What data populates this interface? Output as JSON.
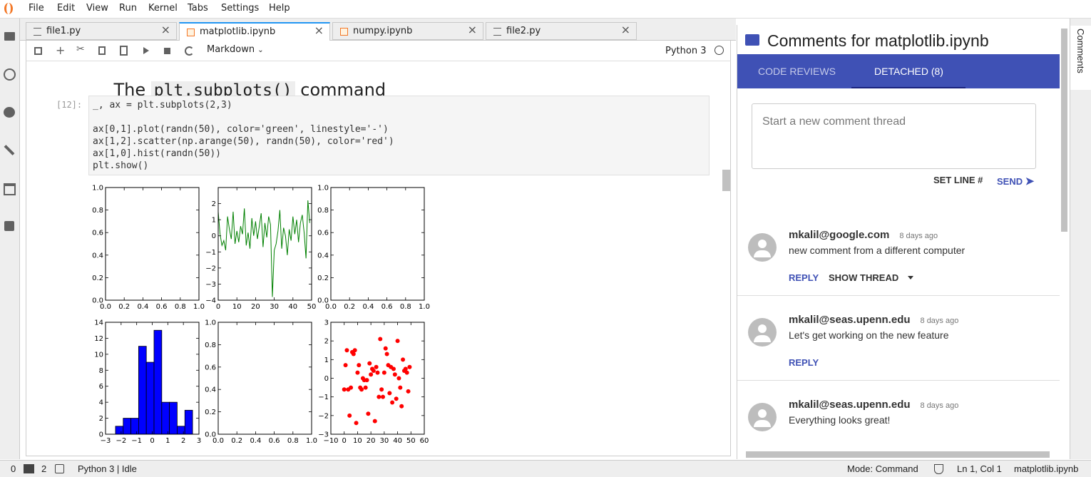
{
  "menu": [
    "File",
    "Edit",
    "View",
    "Run",
    "Kernel",
    "Tabs",
    "Settings",
    "Help"
  ],
  "tabs": [
    {
      "label": "file1.py",
      "kind": "text"
    },
    {
      "label": "matplotlib.ipynb",
      "kind": "notebook",
      "active": true
    },
    {
      "label": "numpy.ipynb",
      "kind": "notebook"
    },
    {
      "label": "file2.py",
      "kind": "text"
    }
  ],
  "toolbar": {
    "cell_type": "Markdown",
    "kernel": "Python 3"
  },
  "notebook": {
    "heading_prefix": "The ",
    "heading_code": "plt.subplots()",
    "heading_suffix": " command",
    "prompt": "[12]:",
    "code": [
      "_, ax = plt.subplots(2,3)",
      "ax[0,1].plot(randn(50), color='green', linestyle='-')",
      "ax[1,2].scatter(np.arange(50), randn(50), color='red')",
      "ax[1,0].hist(randn(50))",
      "plt.show()"
    ]
  },
  "chart_data": [
    {
      "type": "empty",
      "xlim": [
        0,
        1
      ],
      "ylim": [
        0,
        1
      ],
      "xticks": [
        {
          "value": 0,
          "label": "0.0"
        },
        0.2,
        0.4,
        0.6,
        0.8,
        {
          "value": 1,
          "label": "1.0"
        }
      ],
      "yticks": [
        {
          "value": 0,
          "label": "0.0"
        },
        0.2,
        0.4,
        0.6,
        0.8,
        {
          "value": 1,
          "label": "1.0"
        }
      ]
    },
    {
      "type": "line",
      "color": "#008000",
      "xlim": [
        0,
        50
      ],
      "ylim": [
        -4,
        3
      ],
      "xticks": [
        0,
        10,
        20,
        30,
        40,
        50
      ],
      "yticks": [
        {
          "value": -4,
          "label": "−4"
        },
        {
          "value": -3,
          "label": "−3"
        },
        {
          "value": -2,
          "label": "−2"
        },
        {
          "value": -1,
          "label": "−1"
        },
        0,
        1,
        2
      ],
      "x": [
        0,
        1,
        2,
        3,
        4,
        5,
        6,
        7,
        8,
        9,
        10,
        11,
        12,
        13,
        14,
        15,
        16,
        17,
        18,
        19,
        20,
        21,
        22,
        23,
        24,
        25,
        26,
        27,
        28,
        29,
        30,
        31,
        32,
        33,
        34,
        35,
        36,
        37,
        38,
        39,
        40,
        41,
        42,
        43,
        44,
        45,
        46,
        47,
        48,
        49
      ],
      "values": [
        1.5,
        0.1,
        -0.6,
        -0.3,
        -0.9,
        1.2,
        0.4,
        -0.2,
        1.5,
        -0.5,
        0.3,
        -0.4,
        0.6,
        0.1,
        1.7,
        -0.6,
        0.2,
        -0.8,
        1.1,
        0.0,
        0.9,
        -0.2,
        0.6,
        1.4,
        -0.7,
        0.8,
        -0.1,
        1.2,
        0.7,
        -3.8,
        -0.9,
        -0.5,
        0.3,
        1.6,
        -0.8,
        0.5,
        0.0,
        -1.2,
        0.4,
        -0.3,
        1.2,
        0.1,
        1.0,
        -0.4,
        0.8,
        1.3,
        0.2,
        -1.4,
        2.2,
        0.8
      ]
    },
    {
      "type": "empty",
      "xlim": [
        0,
        1
      ],
      "ylim": [
        0,
        1
      ],
      "xticks": [
        {
          "value": 0,
          "label": "0.0"
        },
        0.2,
        0.4,
        0.6,
        0.8,
        {
          "value": 1,
          "label": "1.0"
        }
      ],
      "yticks": [
        {
          "value": 0,
          "label": "0.0"
        },
        0.2,
        0.4,
        0.6,
        0.8,
        {
          "value": 1,
          "label": "1.0"
        }
      ]
    },
    {
      "type": "histogram",
      "color": "#0000ff",
      "xlim": [
        -3,
        3
      ],
      "ylim": [
        0,
        14
      ],
      "xticks": [
        {
          "value": -3,
          "label": "−3"
        },
        {
          "value": -2,
          "label": "−2"
        },
        {
          "value": -1,
          "label": "−1"
        },
        0,
        1,
        2,
        3
      ],
      "yticks": [
        0,
        2,
        4,
        6,
        8,
        10,
        12,
        14
      ],
      "bins": [
        -2.36,
        -1.865,
        -1.37,
        -0.875,
        -0.38,
        0.115,
        0.61,
        1.105,
        1.6,
        2.095,
        2.59
      ],
      "values": [
        1,
        2,
        2,
        11,
        9,
        13,
        4,
        4,
        1,
        3
      ]
    },
    {
      "type": "empty",
      "xlim": [
        0,
        1
      ],
      "ylim": [
        0,
        1
      ],
      "xticks": [
        {
          "value": 0,
          "label": "0.0"
        },
        0.2,
        0.4,
        0.6,
        0.8,
        {
          "value": 1,
          "label": "1.0"
        }
      ],
      "yticks": [
        {
          "value": 0,
          "label": "0.0"
        },
        0.2,
        0.4,
        0.6,
        0.8,
        {
          "value": 1,
          "label": "1.0"
        }
      ]
    },
    {
      "type": "scatter",
      "color": "#ff0000",
      "xlim": [
        -10,
        60
      ],
      "ylim": [
        -3,
        3
      ],
      "xticks": [
        {
          "value": -10,
          "label": "−10"
        },
        0,
        10,
        20,
        30,
        40,
        50,
        60
      ],
      "yticks": [
        {
          "value": -3,
          "label": "−3"
        },
        {
          "value": -2,
          "label": "−2"
        },
        {
          "value": -1,
          "label": "−1"
        },
        0,
        1,
        2,
        3
      ],
      "x": [
        0,
        1,
        2,
        3,
        4,
        5,
        6,
        7,
        8,
        9,
        10,
        11,
        12,
        13,
        14,
        15,
        16,
        17,
        18,
        19,
        20,
        21,
        22,
        23,
        24,
        25,
        26,
        27,
        28,
        29,
        30,
        31,
        32,
        33,
        34,
        35,
        36,
        37,
        38,
        39,
        40,
        41,
        42,
        43,
        44,
        45,
        46,
        47,
        48,
        49
      ],
      "values": [
        -0.6,
        0.7,
        1.5,
        -0.6,
        -2.0,
        -0.5,
        1.4,
        1.3,
        1.5,
        -2.4,
        0.3,
        0.7,
        -0.5,
        -0.6,
        0.0,
        -0.1,
        -0.5,
        -0.1,
        -1.9,
        0.8,
        0.2,
        0.5,
        0.4,
        -2.3,
        0.6,
        0.3,
        -1.0,
        2.1,
        -0.6,
        -1.0,
        0.3,
        1.6,
        1.3,
        0.7,
        -0.8,
        0.6,
        -1.3,
        0.5,
        0.2,
        -1.1,
        2.0,
        0.0,
        -0.5,
        -1.5,
        1.0,
        0.4,
        0.5,
        0.3,
        -0.7,
        0.6
      ]
    }
  ],
  "comments_panel": {
    "title": "Comments for matplotlib.ipynb",
    "tabs": [
      "CODE REVIEWS",
      "DETACHED (8)"
    ],
    "placeholder": "Start a new comment thread",
    "set_line": "SET LINE #",
    "send": "SEND",
    "comments": [
      {
        "author": "mkalil@google.com",
        "time": "8 days ago",
        "text": "new comment from a different computer",
        "actions": [
          "REPLY",
          "SHOW THREAD"
        ]
      },
      {
        "author": "mkalil@seas.upenn.edu",
        "time": "8 days ago",
        "text": "Let's get working on the new feature",
        "actions": [
          "REPLY"
        ]
      },
      {
        "author": "mkalil@seas.upenn.edu",
        "time": "8 days ago",
        "text": "Everything looks great!"
      }
    ]
  },
  "right_sidebar": "Comments",
  "status": {
    "counts": [
      "0",
      "2"
    ],
    "kernel_status": "Python 3 | Idle",
    "mode": "Mode: Command",
    "position": "Ln 1, Col 1",
    "file": "matplotlib.ipynb"
  }
}
